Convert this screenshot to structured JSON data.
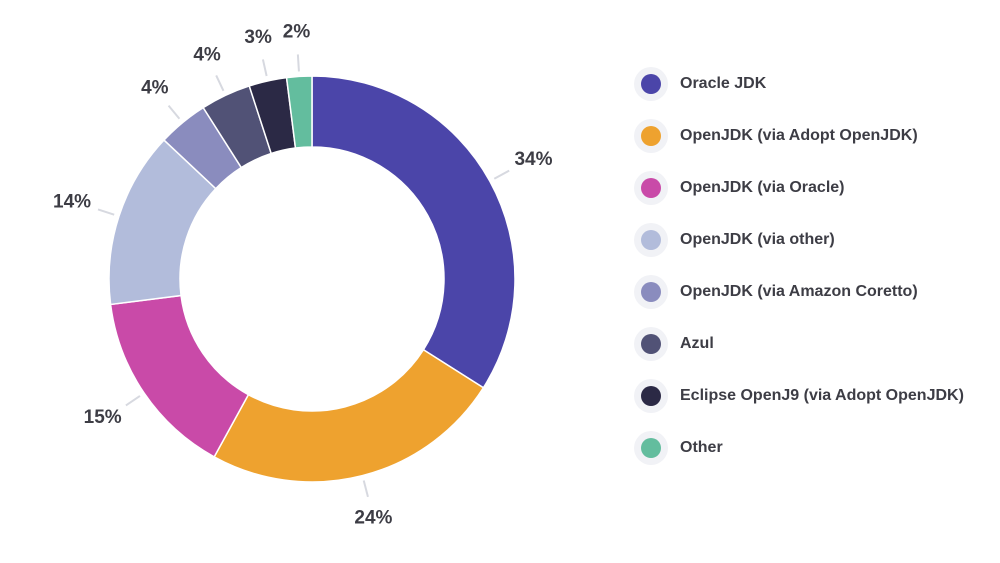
{
  "chart_data": {
    "type": "pie",
    "variant": "donut",
    "title": "",
    "categories": [
      "Oracle JDK",
      "OpenJDK (via Adopt OpenJDK)",
      "OpenJDK (via Oracle)",
      "OpenJDK (via other)",
      "OpenJDK (via Amazon Coretto)",
      "Azul",
      "Eclipse OpenJ9 (via Adopt OpenJDK)",
      "Other"
    ],
    "values": [
      34,
      24,
      15,
      14,
      4,
      4,
      3,
      2
    ],
    "value_labels": [
      "34%",
      "24%",
      "15%",
      "14%",
      "4%",
      "4%",
      "3%",
      "2%"
    ],
    "colors": [
      "#4b45a9",
      "#eea22f",
      "#c94aa8",
      "#b2bcdb",
      "#8a8cbe",
      "#515276",
      "#2b2945",
      "#63bd9e"
    ],
    "legend_position": "right"
  }
}
